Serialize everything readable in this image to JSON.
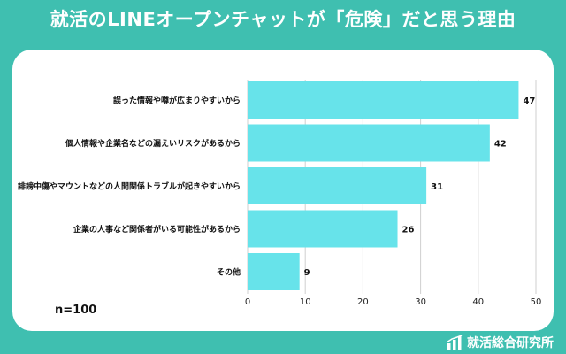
{
  "title": "就活のLINEオープンチャットが「危険」だと思う理由",
  "sample_size": "n=100",
  "brand": "就活総合研究所",
  "colors": {
    "background": "#3fbfb0",
    "bar": "#67e3ea",
    "grid": "#cfcfcf"
  },
  "chart_data": {
    "type": "bar",
    "orientation": "horizontal",
    "categories": [
      "誤った情報や噂が広まりやすいから",
      "個人情報や企業名などの漏えいリスクがあるから",
      "誹謗中傷やマウントなどの人間関係トラブルが起きやすいから",
      "企業の人事など関係者がいる可能性があるから",
      "その他"
    ],
    "values": [
      47,
      42,
      31,
      26,
      9
    ],
    "xlim": [
      0,
      50
    ],
    "xticks": [
      0,
      10,
      20,
      30,
      40,
      50
    ],
    "grid": true
  }
}
